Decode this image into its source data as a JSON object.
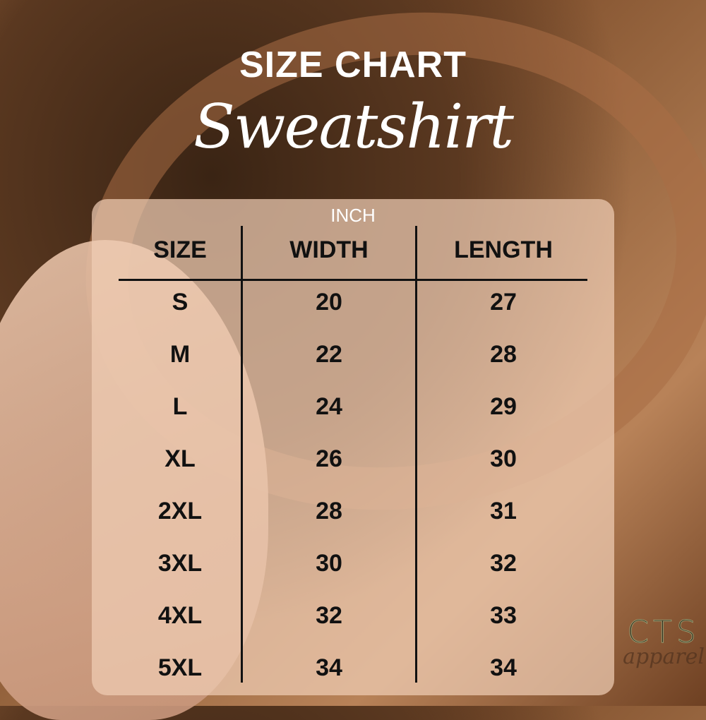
{
  "title": "SIZE CHART",
  "subtitle": "Sweatshirt",
  "unit": "INCH",
  "columns": [
    "SIZE",
    "WIDTH",
    "LENGTH"
  ],
  "rows": [
    [
      "S",
      "20",
      "27"
    ],
    [
      "M",
      "22",
      "28"
    ],
    [
      "L",
      "24",
      "29"
    ],
    [
      "XL",
      "26",
      "30"
    ],
    [
      "2XL",
      "28",
      "31"
    ],
    [
      "3XL",
      "30",
      "32"
    ],
    [
      "4XL",
      "32",
      "33"
    ],
    [
      "5XL",
      "34",
      "34"
    ]
  ],
  "logo": {
    "main": "CTS",
    "sub": "apparel"
  }
}
